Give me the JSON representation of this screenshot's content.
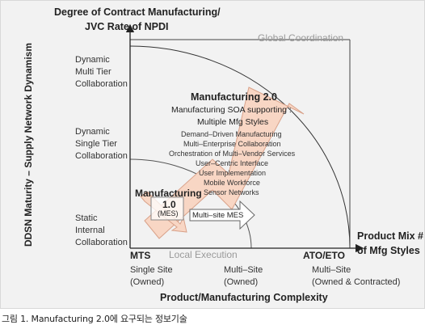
{
  "y_axis_title_line1": "Degree of Contract Manufacturing/",
  "y_axis_title_line2": "JVC Rate of NPDI",
  "vertical_axis_label": "DDSN Maturity – Supply Network Dynamism",
  "x_axis_title": "Product/Manufacturing Complexity",
  "x_axis_right_title_line1": "Product Mix #",
  "x_axis_right_title_line2": "of Mfg Styles",
  "zones": {
    "global": "Global Coordination",
    "local": "Local Execution"
  },
  "y_levels": [
    {
      "line1": "Dynamic",
      "line2": "Multi Tier",
      "line3": "Collaboration"
    },
    {
      "line1": "Dynamic",
      "line2": "Single Tier",
      "line3": "Collaboration"
    },
    {
      "line1": "Static",
      "line2": "Internal",
      "line3": "Collaboration"
    }
  ],
  "x_points": [
    {
      "label": "MTS",
      "line1": "Single Site",
      "line2": "(Owned)"
    },
    {
      "label": "",
      "line1": "Multi–Site",
      "line2": "(Owned)"
    },
    {
      "label": "ATO/ETO",
      "line1": "Multi–Site",
      "line2": "(Owned & Contracted)"
    }
  ],
  "mfg1": {
    "title_line1": "Manufacturing",
    "title_line2": "1.0",
    "sub": "(MES)",
    "arrow_label": "Multi–site MES"
  },
  "mfg2": {
    "title": "Manufacturing 2.0",
    "sub1": "Manufacturing SOA supporting :",
    "sub2": "Multiple Mfg Styles",
    "features": [
      "Demand–Driven Manufacturing",
      "Multi–Enterprise Collaboration",
      "Orchestration of Multi–Vendor Services",
      "User–Centric Interface",
      "User Implementation",
      "Mobile Workforce",
      "Sensor Networks"
    ]
  },
  "caption": "그림 1. Manufacturing 2.0에 요구되는 정보기술",
  "colors": {
    "arrow_fill": "#f8d6c4",
    "arrow_stroke": "#d9a28a",
    "axis": "#222222",
    "zone_text": "#9a9a9a",
    "background": "#f2f2f2"
  }
}
